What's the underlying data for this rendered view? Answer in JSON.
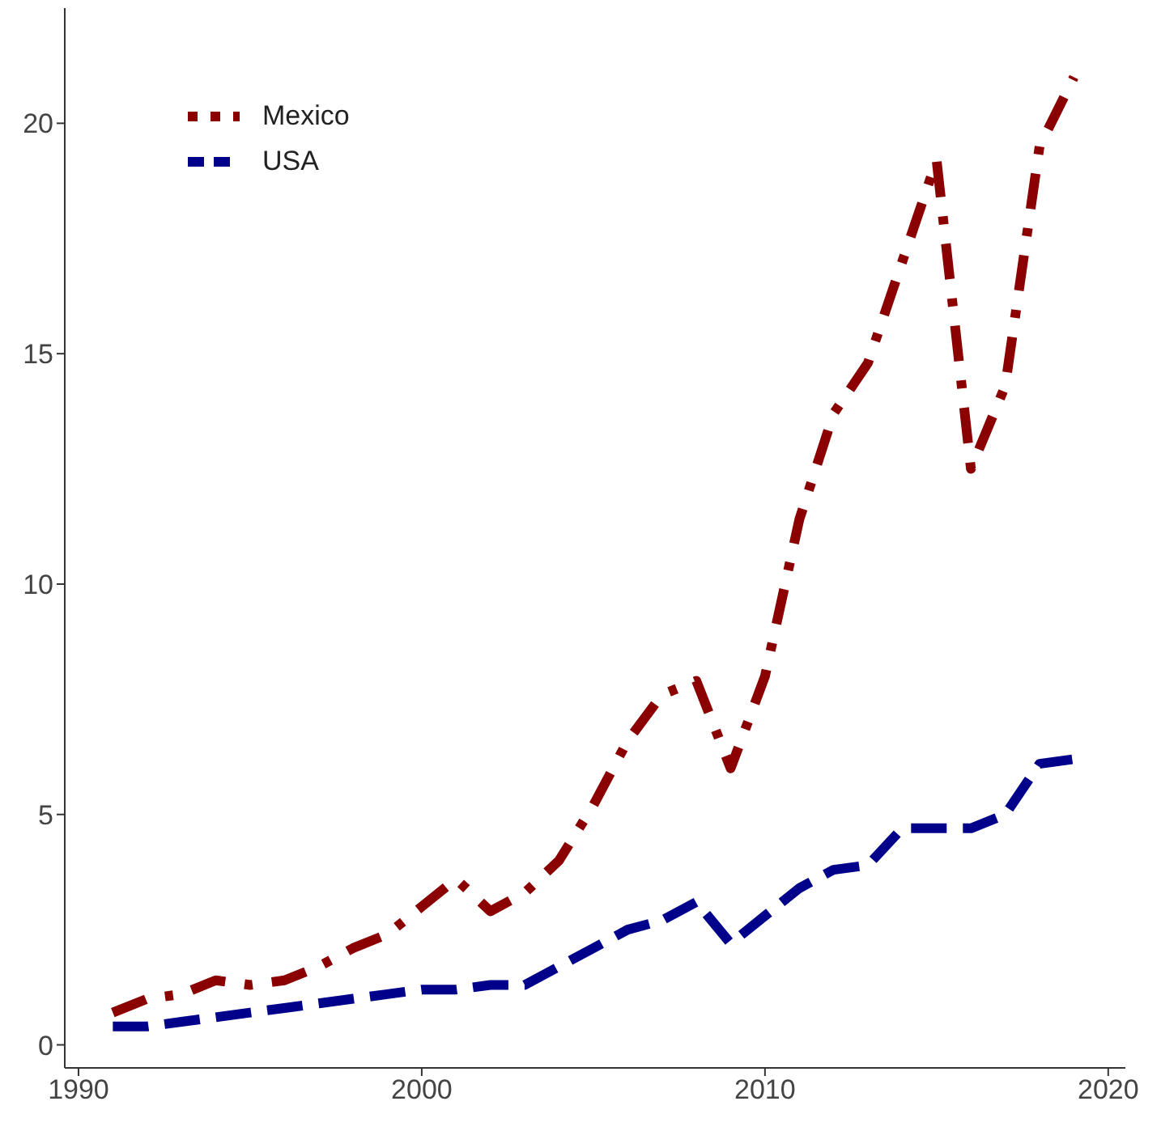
{
  "chart_data": {
    "type": "line",
    "x": [
      1991,
      1992,
      1993,
      1994,
      1995,
      1996,
      1997,
      1998,
      1999,
      2000,
      2001,
      2002,
      2003,
      2004,
      2005,
      2006,
      2007,
      2008,
      2009,
      2010,
      2011,
      2012,
      2013,
      2014,
      2015,
      2016,
      2017,
      2018,
      2019
    ],
    "series": [
      {
        "name": "Mexico",
        "color": "#8b0000",
        "line_style": "dashdot",
        "values": [
          0.7,
          1.0,
          1.1,
          1.4,
          1.3,
          1.4,
          1.7,
          2.1,
          2.4,
          3.0,
          3.6,
          2.9,
          3.3,
          4.0,
          5.2,
          6.6,
          7.6,
          7.9,
          6.0,
          8.0,
          11.4,
          13.7,
          14.8,
          17.0,
          19.2,
          12.5,
          14.3,
          19.5,
          21.0
        ]
      },
      {
        "name": "USA",
        "color": "#00008b",
        "line_style": "dashed",
        "values": [
          0.4,
          0.4,
          0.5,
          0.6,
          0.7,
          0.8,
          0.9,
          1.0,
          1.1,
          1.2,
          1.2,
          1.3,
          1.3,
          1.7,
          2.1,
          2.5,
          2.7,
          3.1,
          2.2,
          2.8,
          3.4,
          3.8,
          3.9,
          4.7,
          4.7,
          4.7,
          5.0,
          6.1,
          6.2
        ]
      }
    ],
    "xlim": [
      1989.6,
      2020.5
    ],
    "xticks": [
      1990,
      2000,
      2010,
      2020
    ],
    "ylim": [
      -0.5,
      22.5
    ],
    "yticks": [
      0,
      5,
      10,
      15,
      20
    ],
    "grid": false,
    "legend": "top left",
    "marker": "none"
  }
}
